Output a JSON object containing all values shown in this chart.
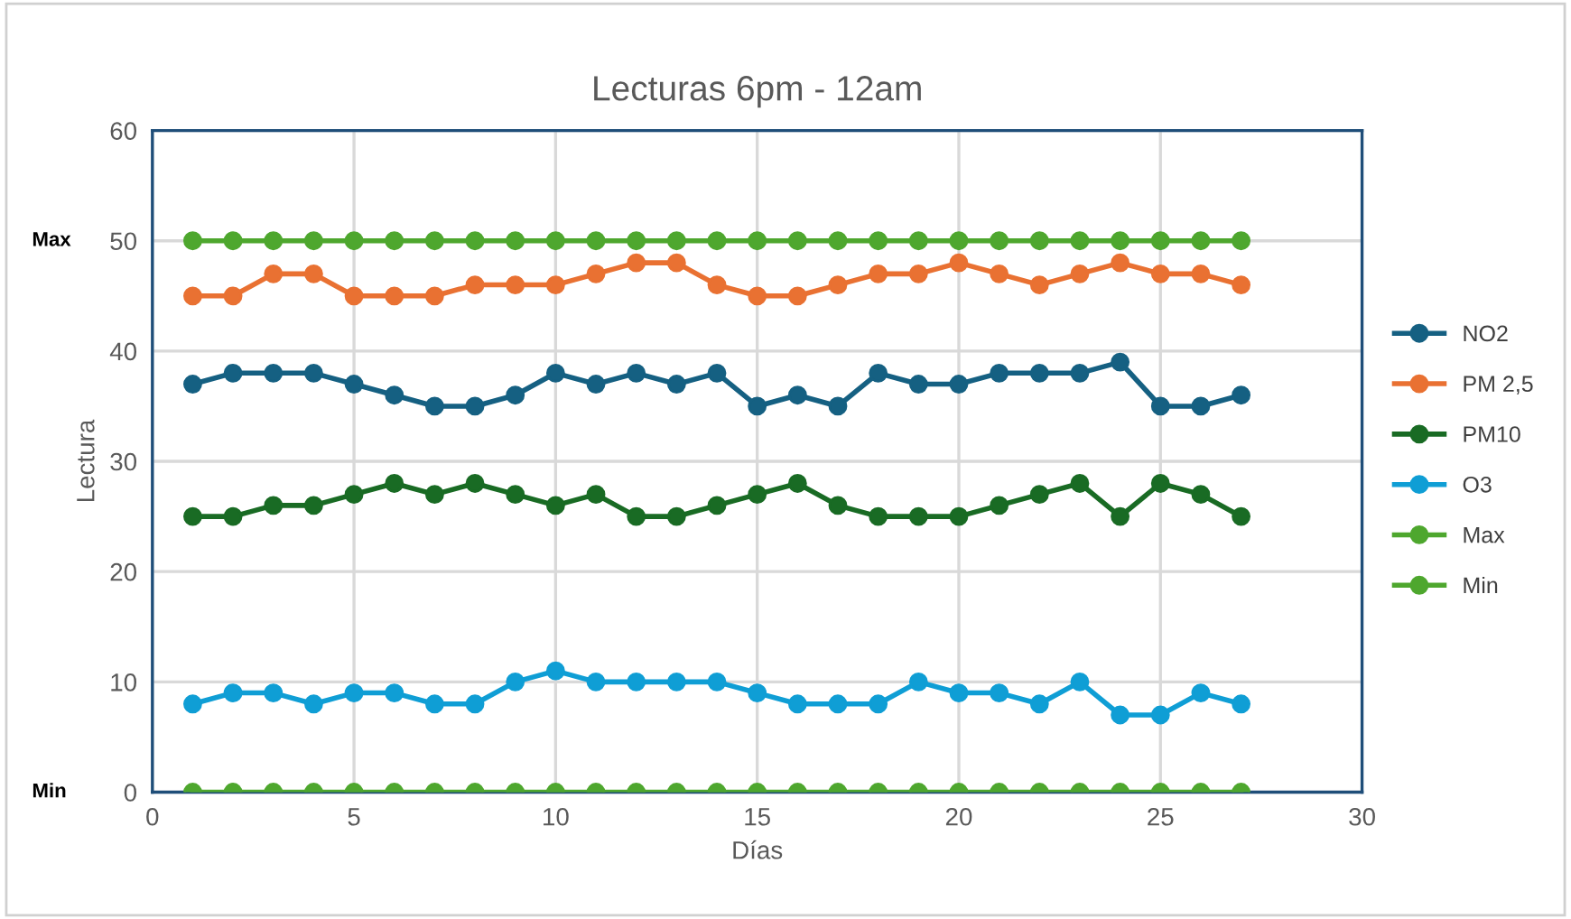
{
  "chart_data": {
    "type": "line",
    "title": "Lecturas 6pm - 12am",
    "xlabel": "Días",
    "ylabel": "Lectura",
    "x": [
      1,
      2,
      3,
      4,
      5,
      6,
      7,
      8,
      9,
      10,
      11,
      12,
      13,
      14,
      15,
      16,
      17,
      18,
      19,
      20,
      21,
      22,
      23,
      24,
      25,
      26,
      27
    ],
    "series": [
      {
        "name": "NO2",
        "color": "#156082",
        "values": [
          37,
          38,
          38,
          38,
          37,
          36,
          35,
          35,
          36,
          38,
          37,
          38,
          37,
          38,
          35,
          36,
          35,
          38,
          37,
          37,
          38,
          38,
          38,
          39,
          35,
          35,
          36
        ]
      },
      {
        "name": "PM 2,5",
        "color": "#e97132",
        "values": [
          45,
          45,
          47,
          47,
          45,
          45,
          45,
          46,
          46,
          46,
          47,
          48,
          48,
          46,
          45,
          45,
          46,
          47,
          47,
          48,
          47,
          46,
          47,
          48,
          47,
          47,
          46
        ]
      },
      {
        "name": "PM10",
        "color": "#196b24",
        "values": [
          25,
          25,
          26,
          26,
          27,
          28,
          27,
          28,
          27,
          26,
          27,
          25,
          25,
          26,
          27,
          28,
          26,
          25,
          25,
          25,
          26,
          27,
          28,
          25,
          28,
          27,
          25
        ]
      },
      {
        "name": "O3",
        "color": "#0f9ed5",
        "values": [
          8,
          9,
          9,
          8,
          9,
          9,
          8,
          8,
          10,
          11,
          10,
          10,
          10,
          10,
          9,
          8,
          8,
          8,
          10,
          9,
          9,
          8,
          10,
          7,
          7,
          9,
          8
        ]
      },
      {
        "name": "Max",
        "color": "#4ea72e",
        "values": [
          50,
          50,
          50,
          50,
          50,
          50,
          50,
          50,
          50,
          50,
          50,
          50,
          50,
          50,
          50,
          50,
          50,
          50,
          50,
          50,
          50,
          50,
          50,
          50,
          50,
          50,
          50
        ]
      },
      {
        "name": "Min",
        "color": "#4ea72e",
        "values": [
          0,
          0,
          0,
          0,
          0,
          0,
          0,
          0,
          0,
          0,
          0,
          0,
          0,
          0,
          0,
          0,
          0,
          0,
          0,
          0,
          0,
          0,
          0,
          0,
          0,
          0,
          0
        ]
      }
    ],
    "xlim": [
      0,
      30
    ],
    "xticks": [
      0,
      5,
      10,
      15,
      20,
      25,
      30
    ],
    "ylim": [
      0,
      60
    ],
    "yticks": [
      0,
      10,
      20,
      30,
      40,
      50,
      60
    ],
    "annotations": [
      "Max",
      "Min"
    ],
    "grid": true,
    "legend": "right",
    "marker": "circle",
    "line_style": "solid"
  }
}
